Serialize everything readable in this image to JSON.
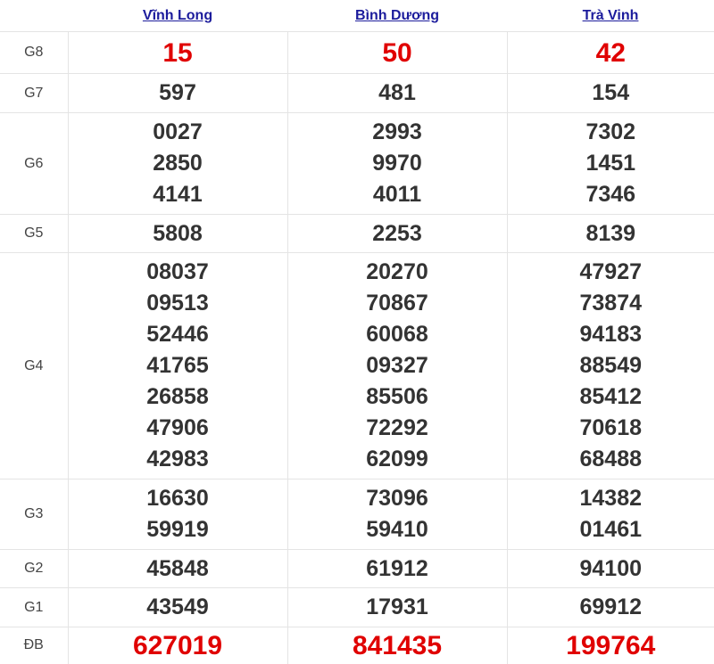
{
  "provinces": [
    "Vĩnh Long",
    "Bình Dương",
    "Trà Vinh"
  ],
  "accent_color": "#e00000",
  "link_color": "#1c1c9c",
  "prizes": [
    {
      "label": "G8",
      "highlight": true,
      "results": [
        [
          "15"
        ],
        [
          "50"
        ],
        [
          "42"
        ]
      ]
    },
    {
      "label": "G7",
      "highlight": false,
      "results": [
        [
          "597"
        ],
        [
          "481"
        ],
        [
          "154"
        ]
      ]
    },
    {
      "label": "G6",
      "highlight": false,
      "results": [
        [
          "0027",
          "2850",
          "4141"
        ],
        [
          "2993",
          "9970",
          "4011"
        ],
        [
          "7302",
          "1451",
          "7346"
        ]
      ]
    },
    {
      "label": "G5",
      "highlight": false,
      "results": [
        [
          "5808"
        ],
        [
          "2253"
        ],
        [
          "8139"
        ]
      ]
    },
    {
      "label": "G4",
      "highlight": false,
      "results": [
        [
          "08037",
          "09513",
          "52446",
          "41765",
          "26858",
          "47906",
          "42983"
        ],
        [
          "20270",
          "70867",
          "60068",
          "09327",
          "85506",
          "72292",
          "62099"
        ],
        [
          "47927",
          "73874",
          "94183",
          "88549",
          "85412",
          "70618",
          "68488"
        ]
      ]
    },
    {
      "label": "G3",
      "highlight": false,
      "results": [
        [
          "16630",
          "59919"
        ],
        [
          "73096",
          "59410"
        ],
        [
          "14382",
          "01461"
        ]
      ]
    },
    {
      "label": "G2",
      "highlight": false,
      "results": [
        [
          "45848"
        ],
        [
          "61912"
        ],
        [
          "94100"
        ]
      ]
    },
    {
      "label": "G1",
      "highlight": false,
      "results": [
        [
          "43549"
        ],
        [
          "17931"
        ],
        [
          "69912"
        ]
      ]
    },
    {
      "label": "ĐB",
      "highlight": true,
      "results": [
        [
          "627019"
        ],
        [
          "841435"
        ],
        [
          "199764"
        ]
      ]
    }
  ]
}
